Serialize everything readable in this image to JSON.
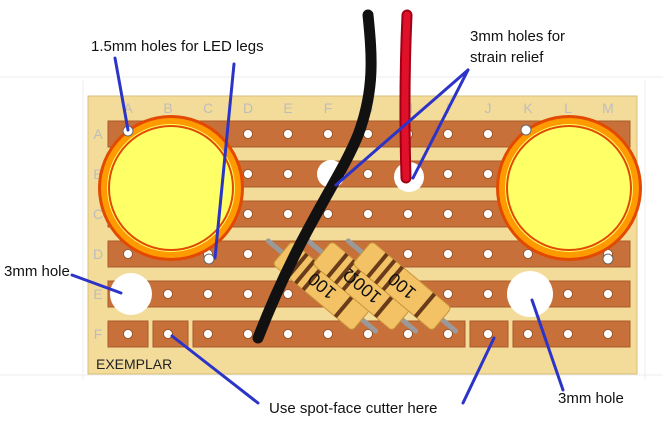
{
  "board": {
    "name_label": "EXEMPLAR",
    "columns": [
      "A",
      "B",
      "C",
      "D",
      "E",
      "F",
      "G",
      "H",
      "I",
      "J",
      "K",
      "L",
      "M"
    ],
    "rows": [
      "A",
      "B",
      "C",
      "D",
      "E",
      "F"
    ],
    "colors": {
      "board": "#f3dc9a",
      "strip": "#c8703a",
      "strip_edge": "#a85a2a",
      "hole": "#ffffff",
      "led_yellow": "#ffff66",
      "led_orange": "#ff9a00",
      "led_red_ring": "#e14a00",
      "resistor_body": "#f2c265",
      "wire_black": "#111111",
      "wire_red": "#e0102a",
      "pointer": "#2c34c8"
    }
  },
  "resistors": [
    {
      "label": "100"
    },
    {
      "label": "100Ω"
    },
    {
      "label": "100"
    }
  ],
  "annotations": {
    "led_holes": "1.5mm holes for LED legs",
    "strain_relief_line1": "3mm holes for",
    "strain_relief_line2": "strain relief",
    "hole_left": "3mm hole",
    "hole_right": "3mm hole",
    "spot_face": "Use spot-face cutter here"
  }
}
